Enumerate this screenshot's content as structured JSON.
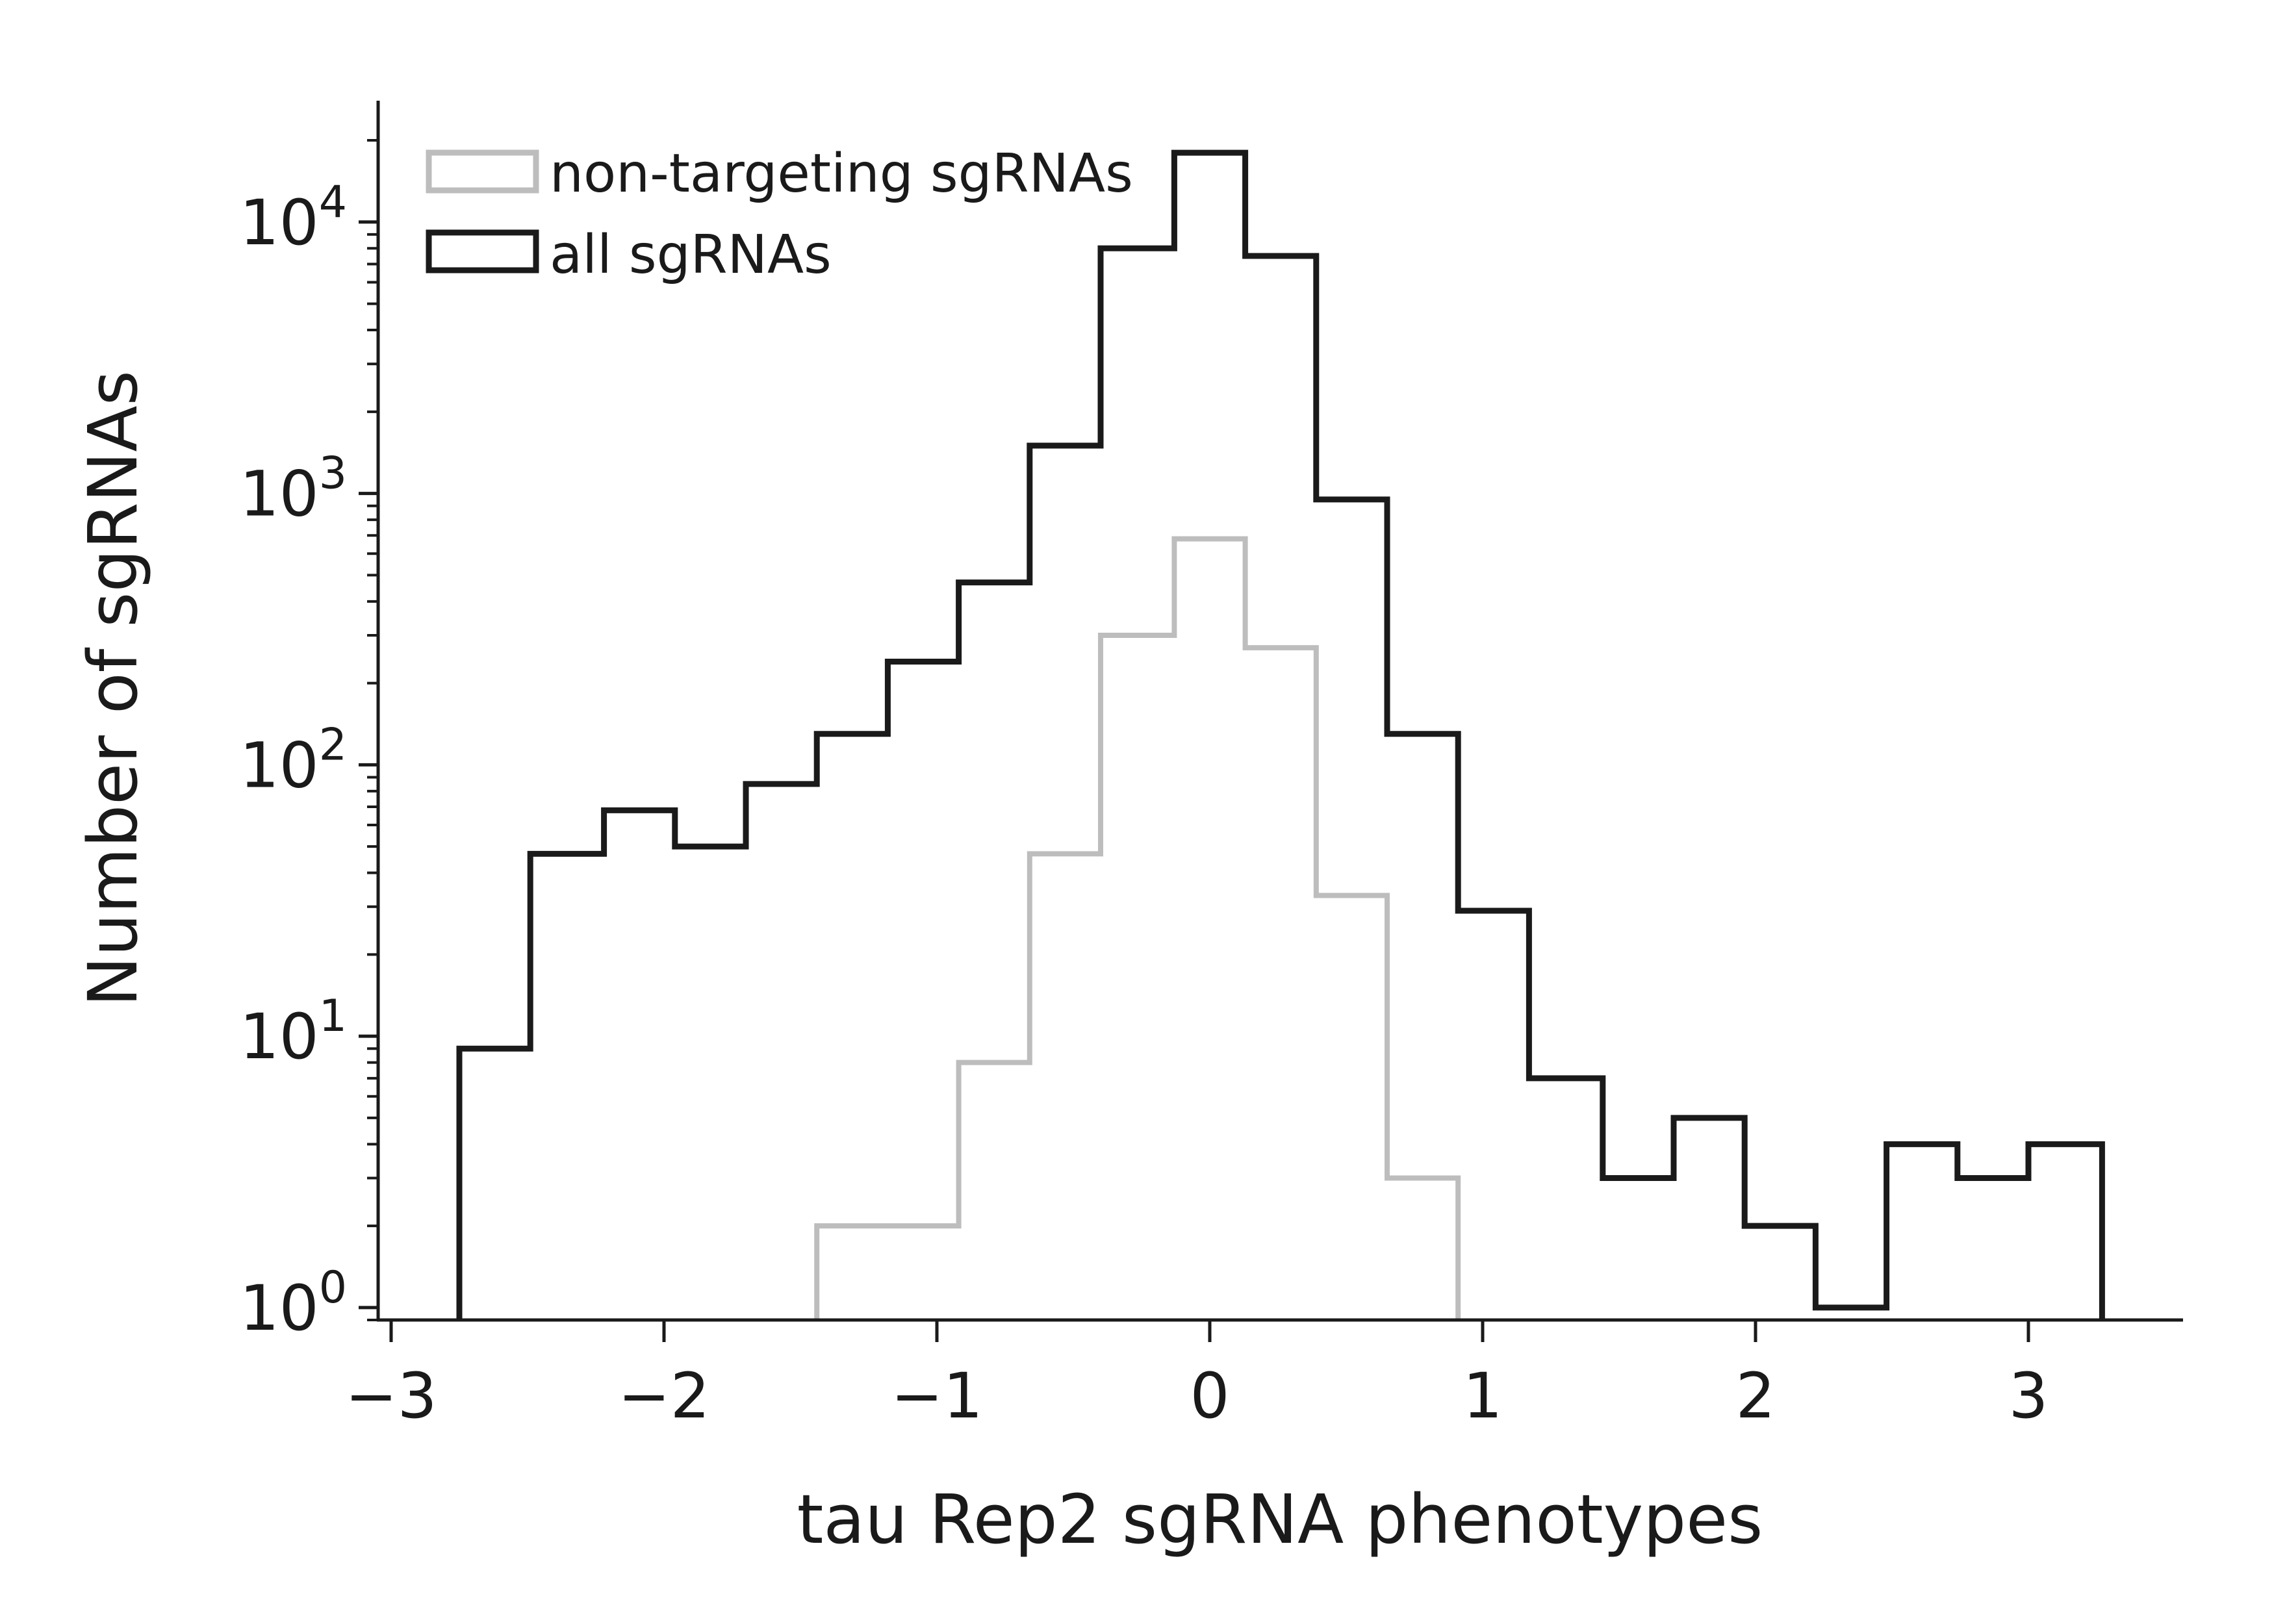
{
  "chart_data": {
    "type": "histogram",
    "xlabel": "tau Rep2 sgRNA phenotypes",
    "ylabel": "Number of sgRNAs",
    "xlim": [
      -3.0,
      3.55
    ],
    "ylim": [
      0.9,
      28000
    ],
    "yscale": "log",
    "legend_position": "top-left",
    "x_ticks": [
      -3,
      -2,
      -1,
      0,
      1,
      2,
      3
    ],
    "x_tick_labels": [
      "−3",
      "−2",
      "−1",
      "0",
      "1",
      "2",
      "3"
    ],
    "y_ticks": [
      1,
      10,
      100,
      1000,
      10000
    ],
    "y_tick_labels": [
      {
        "base": "10",
        "exp": "0"
      },
      {
        "base": "10",
        "exp": "1"
      },
      {
        "base": "10",
        "exp": "2"
      },
      {
        "base": "10",
        "exp": "3"
      },
      {
        "base": "10",
        "exp": "4"
      }
    ],
    "bin_edges": [
      -2.75,
      -2.49,
      -2.22,
      -1.96,
      -1.7,
      -1.44,
      -1.18,
      -0.92,
      -0.66,
      -0.4,
      -0.13,
      0.13,
      0.39,
      0.65,
      0.91,
      1.17,
      1.44,
      1.7,
      1.96,
      2.22,
      2.48,
      2.74,
      3.0,
      3.27
    ],
    "series": [
      {
        "name": "non-targeting sgRNAs",
        "color": "#bdbdbd",
        "values": [
          0,
          0,
          0,
          0,
          0,
          2,
          2,
          8,
          47,
          300,
          680,
          270,
          33,
          3,
          0,
          0,
          0,
          0,
          0,
          0,
          0,
          0,
          0
        ]
      },
      {
        "name": "all sgRNAs",
        "color": "#1a1a1a",
        "values": [
          9,
          47,
          68,
          50,
          85,
          130,
          240,
          470,
          1500,
          8000,
          18000,
          7500,
          950,
          130,
          29,
          7,
          3,
          5,
          2,
          1,
          4,
          3,
          4
        ]
      }
    ]
  }
}
